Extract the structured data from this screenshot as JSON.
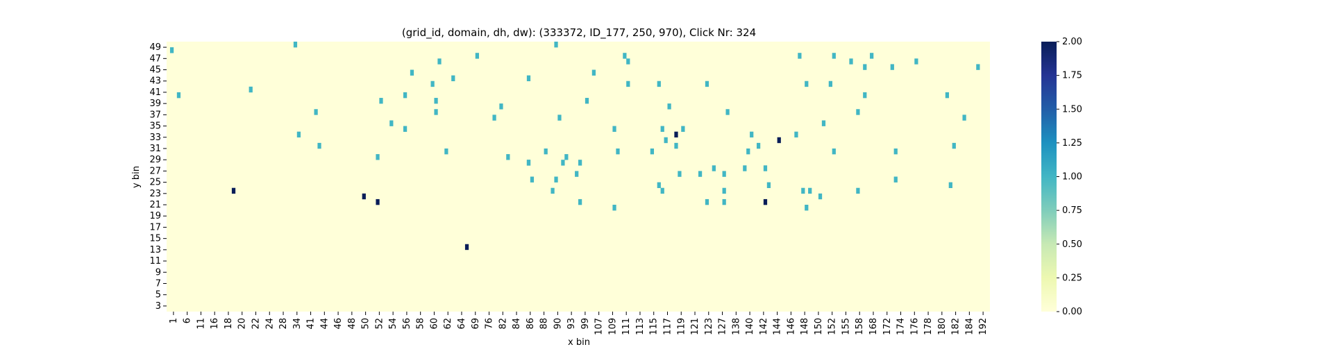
{
  "chart_data": {
    "type": "heatmap",
    "title": "(grid_id, domain, dh, dw): (333372, ID_177, 250, 970), Click Nr: 324",
    "xlabel": "x bin",
    "ylabel": "y bin",
    "x_tick_labels": [
      "1",
      "6",
      "11",
      "16",
      "18",
      "20",
      "22",
      "24",
      "28",
      "34",
      "41",
      "44",
      "46",
      "48",
      "50",
      "52",
      "54",
      "56",
      "58",
      "60",
      "62",
      "64",
      "69",
      "76",
      "82",
      "84",
      "86",
      "88",
      "90",
      "93",
      "99",
      "107",
      "109",
      "111",
      "113",
      "115",
      "117",
      "119",
      "121",
      "123",
      "127",
      "138",
      "140",
      "142",
      "144",
      "146",
      "148",
      "150",
      "152",
      "155",
      "158",
      "168",
      "172",
      "174",
      "176",
      "178",
      "180",
      "182",
      "184",
      "192"
    ],
    "y_tick_labels": [
      "49",
      "47",
      "45",
      "43",
      "41",
      "39",
      "37",
      "35",
      "33",
      "31",
      "29",
      "27",
      "25",
      "23",
      "21",
      "19",
      "17",
      "15",
      "13",
      "11",
      "9",
      "7",
      "5",
      "3"
    ],
    "colorbar": {
      "colormap": "YlGnBu",
      "min": 0.0,
      "max": 2.0,
      "ticks": [
        "0.00",
        "0.25",
        "0.50",
        "0.75",
        "1.00",
        "1.25",
        "1.50",
        "1.75",
        "2.00"
      ],
      "colors": [
        "#ffffd9",
        "#edf8b1",
        "#c7e9b4",
        "#7fcdbb",
        "#41b6c4",
        "#1d91c0",
        "#225ea8",
        "#253494",
        "#081d58"
      ]
    },
    "background_value": 0,
    "cells_value_1": [
      [
        37,
        49
      ],
      [
        113,
        49
      ],
      [
        1,
        48
      ],
      [
        90,
        47
      ],
      [
        133,
        47
      ],
      [
        184,
        47
      ],
      [
        194,
        47
      ],
      [
        205,
        47
      ],
      [
        199,
        46
      ],
      [
        134,
        46
      ],
      [
        79,
        46
      ],
      [
        218,
        46
      ],
      [
        203,
        45
      ],
      [
        211,
        45
      ],
      [
        71,
        44
      ],
      [
        124,
        44
      ],
      [
        236,
        45
      ],
      [
        105,
        43
      ],
      [
        83,
        43
      ],
      [
        143,
        42
      ],
      [
        186,
        42
      ],
      [
        134,
        42
      ],
      [
        157,
        42
      ],
      [
        77,
        42
      ],
      [
        193,
        42
      ],
      [
        24,
        41
      ],
      [
        203,
        40
      ],
      [
        69,
        40
      ],
      [
        227,
        40
      ],
      [
        3,
        40
      ],
      [
        78,
        39
      ],
      [
        122,
        39
      ],
      [
        62,
        39
      ],
      [
        97,
        38
      ],
      [
        146,
        38
      ],
      [
        201,
        37
      ],
      [
        78,
        37
      ],
      [
        163,
        37
      ],
      [
        43,
        37
      ],
      [
        95,
        36
      ],
      [
        232,
        36
      ],
      [
        114,
        36
      ],
      [
        65,
        35
      ],
      [
        69,
        34
      ],
      [
        191,
        35
      ],
      [
        144,
        34
      ],
      [
        130,
        34
      ],
      [
        150,
        34
      ],
      [
        170,
        33
      ],
      [
        183,
        33
      ],
      [
        38,
        33
      ],
      [
        145,
        32
      ],
      [
        148,
        31
      ],
      [
        44,
        31
      ],
      [
        229,
        31
      ],
      [
        172,
        31
      ],
      [
        131,
        30
      ],
      [
        212,
        30
      ],
      [
        81,
        30
      ],
      [
        194,
        30
      ],
      [
        110,
        30
      ],
      [
        141,
        30
      ],
      [
        169,
        30
      ],
      [
        61,
        29
      ],
      [
        99,
        29
      ],
      [
        116,
        29
      ],
      [
        105,
        28
      ],
      [
        115,
        28
      ],
      [
        120,
        28
      ],
      [
        105,
        28
      ],
      [
        168,
        27
      ],
      [
        174,
        27
      ],
      [
        159,
        27
      ],
      [
        149,
        26
      ],
      [
        119,
        26
      ],
      [
        155,
        26
      ],
      [
        162,
        26
      ],
      [
        106,
        25
      ],
      [
        212,
        25
      ],
      [
        113,
        25
      ],
      [
        228,
        24
      ],
      [
        143,
        24
      ],
      [
        175,
        24
      ],
      [
        162,
        23
      ],
      [
        185,
        23
      ],
      [
        144,
        23
      ],
      [
        187,
        23
      ],
      [
        201,
        23
      ],
      [
        112,
        23
      ],
      [
        190,
        22
      ],
      [
        162,
        21
      ],
      [
        120,
        21
      ],
      [
        157,
        21
      ],
      [
        130,
        20
      ],
      [
        186,
        20
      ]
    ],
    "cells_value_2": [
      [
        19,
        23
      ],
      [
        57,
        22
      ],
      [
        61,
        21
      ],
      [
        87,
        13
      ],
      [
        148,
        33
      ],
      [
        178,
        32
      ],
      [
        174,
        21
      ]
    ]
  }
}
